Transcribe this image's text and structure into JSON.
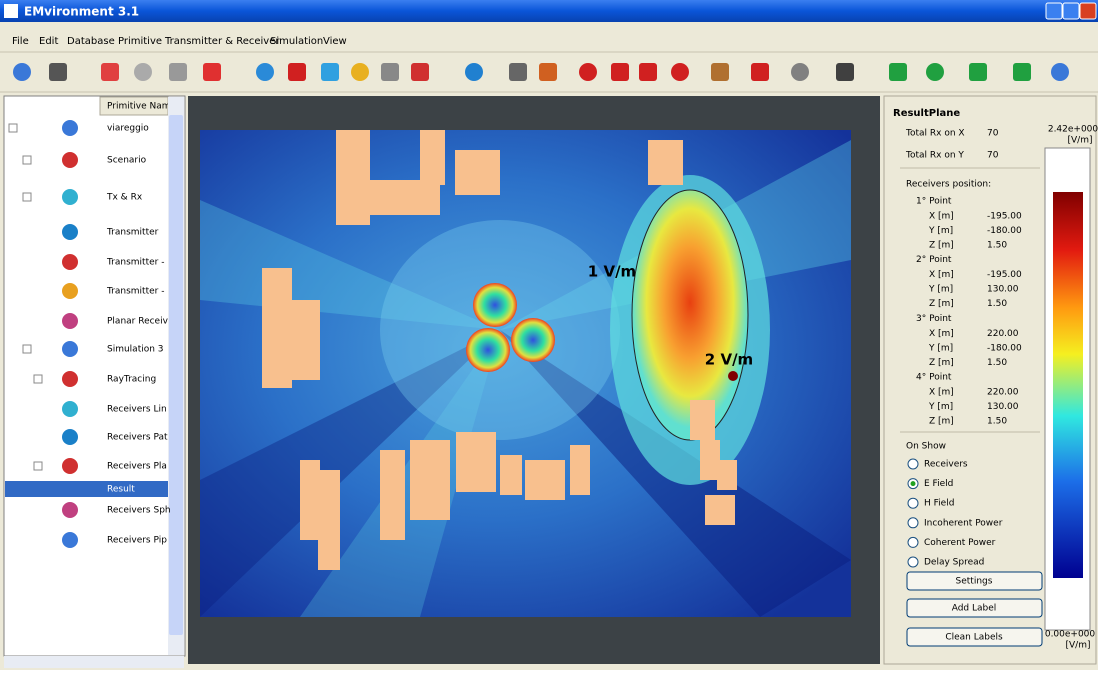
{
  "window": {
    "title": "EMvironment 3.1"
  },
  "menu": [
    "File",
    "Edit",
    "Database",
    "Primitive",
    "Transmitter & Receiver",
    "Simulation",
    "View"
  ],
  "tree": {
    "header": "Primitive Nam",
    "items": [
      "viareggio",
      "Scenario",
      "Tx & Rx",
      "Transmitter",
      "Transmitter -",
      "Transmitter -",
      "Planar Receiv",
      "Simulation 3",
      "RayTracing",
      "Receivers Lin",
      "Receivers Pat",
      "Receivers Pla",
      "Result",
      "Receivers Sph",
      "Receivers Pip"
    ],
    "selected": "Result"
  },
  "map": {
    "annotations": [
      "1 V/m",
      "2 V/m"
    ]
  },
  "panel": {
    "title": "ResultPlane",
    "totals": [
      {
        "label": "Total  Rx on X",
        "value": "70"
      },
      {
        "label": "Total  Rx on Y",
        "value": "70"
      }
    ],
    "positions_title": "Receivers position:",
    "points": [
      {
        "name": "1° Point",
        "rows": [
          {
            "label": "X [m]",
            "value": "-195.00"
          },
          {
            "label": "Y [m]",
            "value": "-180.00"
          },
          {
            "label": "Z [m]",
            "value": "1.50"
          }
        ]
      },
      {
        "name": "2° Point",
        "rows": [
          {
            "label": "X [m]",
            "value": "-195.00"
          },
          {
            "label": "Y [m]",
            "value": "130.00"
          },
          {
            "label": "Z [m]",
            "value": "1.50"
          }
        ]
      },
      {
        "name": "3° Point",
        "rows": [
          {
            "label": "X [m]",
            "value": "220.00"
          },
          {
            "label": "Y [m]",
            "value": "-180.00"
          },
          {
            "label": "Z [m]",
            "value": "1.50"
          }
        ]
      },
      {
        "name": "4° Point",
        "rows": [
          {
            "label": "X [m]",
            "value": "220.00"
          },
          {
            "label": "Y [m]",
            "value": "130.00"
          },
          {
            "label": "Z [m]",
            "value": "1.50"
          }
        ]
      }
    ],
    "on_show": {
      "title": "On Show",
      "options": [
        "Receivers",
        "E Field",
        "H Field",
        "Incoherent Power",
        "Coherent Power",
        "Delay Spread"
      ],
      "selected": "E Field"
    },
    "buttons": [
      "Settings",
      "Add Label",
      "Clean Labels"
    ],
    "colorbar": {
      "max_label": "2.42e+000",
      "min_label": "0.00e+000",
      "unit": "[V/m]"
    }
  }
}
